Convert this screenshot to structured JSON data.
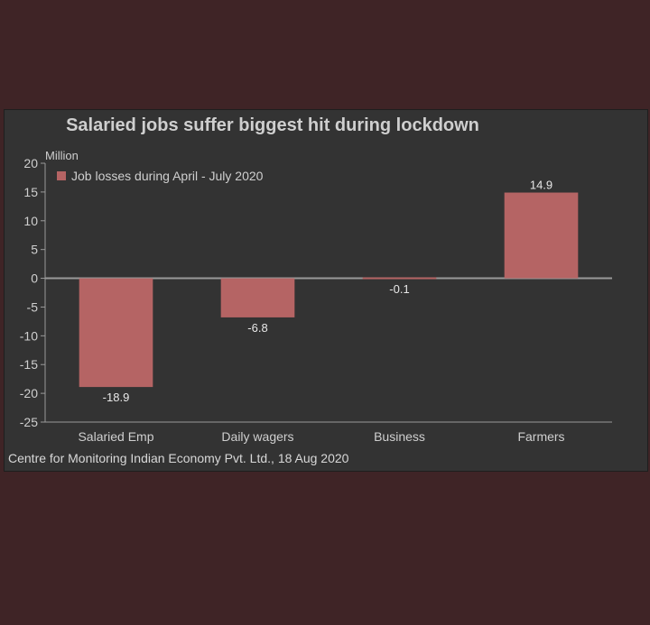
{
  "chart_data": {
    "type": "bar",
    "title": "Salaried jobs suffer biggest hit during lockdown",
    "y_unit_label": "Million",
    "categories": [
      "Salaried Emp",
      "Daily wagers",
      "Business",
      "Farmers"
    ],
    "series": [
      {
        "name": "Job losses during April - July 2020",
        "values": [
          -18.9,
          -6.8,
          -0.1,
          14.9
        ],
        "color": "#b56464"
      }
    ],
    "data_labels": [
      "-18.9",
      "-6.8",
      "-0.1",
      "14.9"
    ],
    "ylim": [
      -25,
      20
    ],
    "yticks": [
      20,
      15,
      10,
      5,
      0,
      -5,
      -10,
      -15,
      -20,
      -25
    ],
    "legend_position": "top-left",
    "grid": false,
    "source": "Centre for Monitoring Indian Economy Pvt. Ltd., 18 Aug 2020"
  },
  "colors": {
    "page_background": "#3f2426",
    "panel_background": "#333333",
    "bar": "#b56464",
    "axis": "#9a9a9a",
    "text": "#cfcfcf"
  }
}
